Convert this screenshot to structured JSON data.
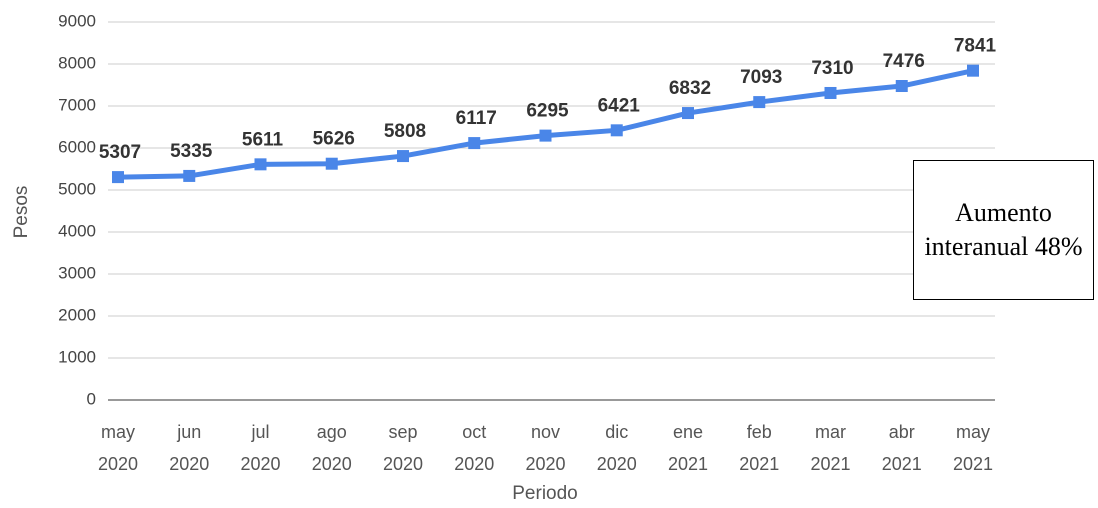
{
  "chart_data": {
    "type": "line",
    "categories": [
      "may 2020",
      "jun 2020",
      "jul 2020",
      "ago 2020",
      "sep 2020",
      "oct 2020",
      "nov 2020",
      "dic 2020",
      "ene 2021",
      "feb 2021",
      "mar 2021",
      "abr 2021",
      "may 2021"
    ],
    "values": [
      5307,
      5335,
      5611,
      5626,
      5808,
      6117,
      6295,
      6421,
      6832,
      7093,
      7310,
      7476,
      7841
    ],
    "color": "#4a86e8",
    "ylim": [
      0,
      9000
    ],
    "yticks": [
      0,
      1000,
      2000,
      3000,
      4000,
      5000,
      6000,
      7000,
      8000,
      9000
    ],
    "grid": true,
    "ylabel": "Pesos",
    "xlabel": "Periodo",
    "annotation": "Aumento interanual 48%"
  }
}
